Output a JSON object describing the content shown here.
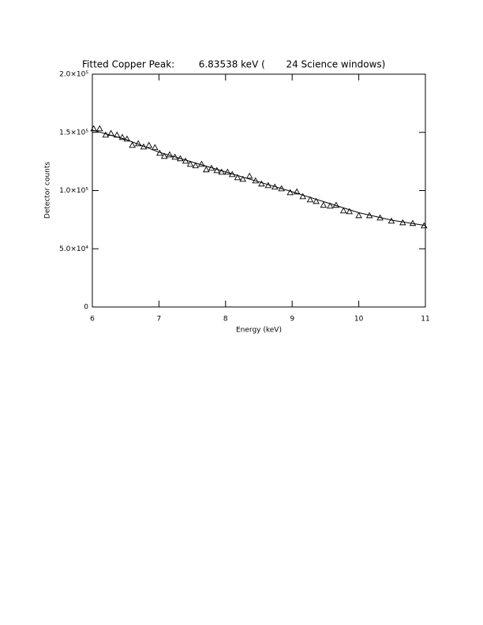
{
  "chart_data": {
    "type": "scatter",
    "title": "Fitted Copper Peak:        6.83538 keV (       24 Science windows)",
    "x_label": "Energy (keV)",
    "y_label": "Detector counts",
    "xlim": [
      6,
      11
    ],
    "ylim": [
      0,
      200000
    ],
    "xticks": [
      6,
      7,
      8,
      9,
      10,
      11
    ],
    "yticks": [
      0,
      {
        "value": 50000,
        "label": "5.0×10⁴"
      },
      {
        "value": 100000,
        "label": "1.0×10⁵"
      },
      {
        "value": 150000,
        "label": "1.5×10⁵"
      },
      {
        "value": 200000,
        "label": "2.0×10⁵"
      }
    ],
    "series": [
      {
        "mode": "markers",
        "marker": "triangle",
        "color": "#000000",
        "x": [
          6.02,
          6.11,
          6.2,
          6.28,
          6.37,
          6.45,
          6.52,
          6.6,
          6.69,
          6.77,
          6.85,
          6.94,
          7.01,
          7.08,
          7.16,
          7.24,
          7.32,
          7.4,
          7.47,
          7.55,
          7.64,
          7.71,
          7.79,
          7.87,
          7.94,
          8.03,
          8.1,
          8.18,
          8.26,
          8.36,
          8.45,
          8.54,
          8.64,
          8.74,
          8.84,
          8.97,
          9.07,
          9.16,
          9.27,
          9.36,
          9.47,
          9.57,
          9.66,
          9.77,
          9.86,
          10.0,
          10.16,
          10.32,
          10.49,
          10.66,
          10.81,
          10.98
        ],
        "values": [
          153200,
          153200,
          147800,
          149200,
          147800,
          145800,
          144400,
          139000,
          140300,
          137600,
          139000,
          137000,
          132200,
          129500,
          130800,
          128800,
          127500,
          125400,
          122700,
          121400,
          122700,
          118000,
          119300,
          117300,
          115900,
          115900,
          113900,
          111200,
          109800,
          112500,
          108500,
          105800,
          104400,
          103100,
          101700,
          98300,
          99000,
          94900,
          92200,
          90800,
          87500,
          86800,
          87500,
          82700,
          82000,
          78600,
          78600,
          76600,
          73900,
          72500,
          71900,
          69800
        ]
      },
      {
        "mode": "line",
        "color": "#000000",
        "x": [
          6,
          6.5,
          7,
          7.5,
          8,
          8.5,
          9,
          9.5,
          10,
          10.5,
          11
        ],
        "values": [
          152000,
          144000,
          133000,
          124500,
          116000,
          107500,
          99000,
          90000,
          81000,
          74500,
          70000
        ]
      }
    ]
  }
}
